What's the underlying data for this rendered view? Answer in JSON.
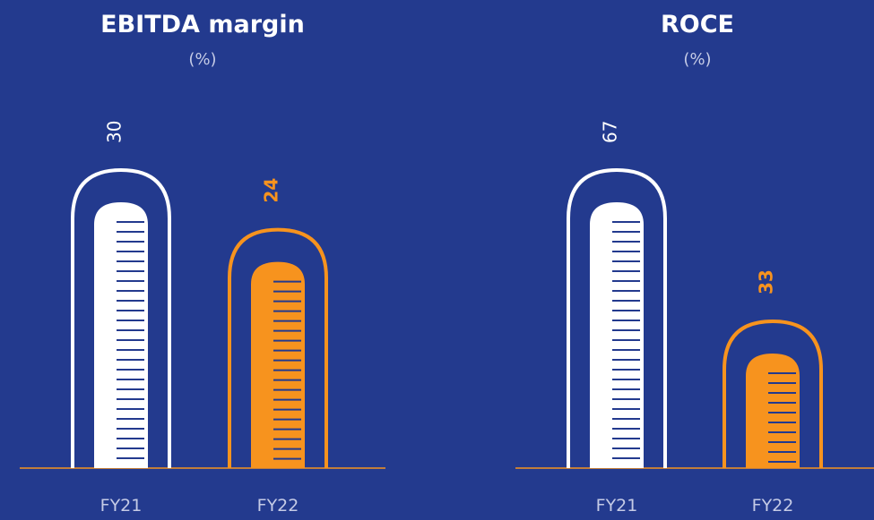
{
  "chart_data": [
    {
      "type": "bar",
      "title": "EBITDA margin",
      "subtitle": "(%)",
      "categories": [
        "FY21",
        "FY22"
      ],
      "values": [
        30,
        24
      ],
      "colors": [
        "#ffffff",
        "#f7931e"
      ]
    },
    {
      "type": "bar",
      "title": "ROCE",
      "subtitle": "(%)",
      "categories": [
        "FY21",
        "FY22"
      ],
      "values": [
        67,
        33
      ],
      "colors": [
        "#ffffff",
        "#f7931e"
      ]
    }
  ]
}
